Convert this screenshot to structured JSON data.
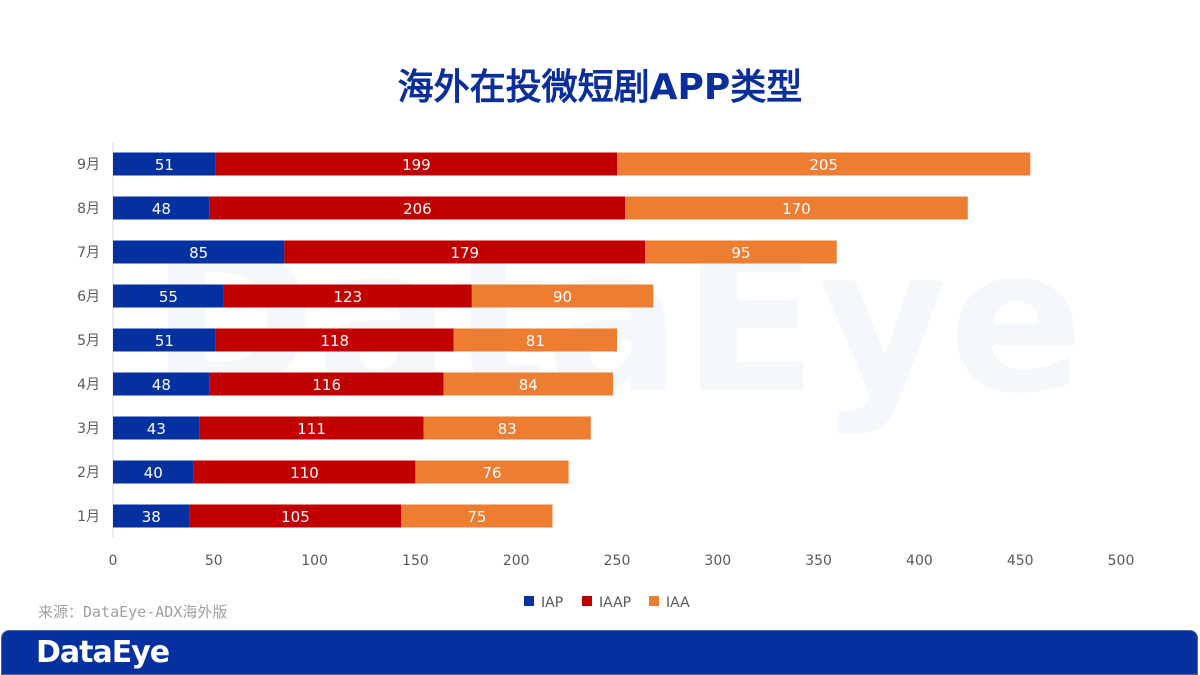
{
  "chart_data": {
    "type": "bar",
    "orientation": "horizontal",
    "stacked": true,
    "title": "海外在投微短剧APP类型",
    "categories": [
      "1月",
      "2月",
      "3月",
      "4月",
      "5月",
      "6月",
      "7月",
      "8月",
      "9月"
    ],
    "series": [
      {
        "name": "IAP",
        "color": "#0530a0",
        "values": [
          38,
          40,
          43,
          48,
          51,
          55,
          85,
          48,
          51
        ]
      },
      {
        "name": "IAAP",
        "color": "#c00000",
        "values": [
          105,
          110,
          111,
          116,
          118,
          123,
          179,
          206,
          199
        ]
      },
      {
        "name": "IAA",
        "color": "#ed7d31",
        "values": [
          75,
          76,
          83,
          84,
          81,
          90,
          95,
          170,
          205
        ]
      }
    ],
    "xlim": [
      0,
      500
    ],
    "xticks": [
      0,
      50,
      100,
      150,
      200,
      250,
      300,
      350,
      400,
      450,
      500
    ],
    "grid": false,
    "legend": "bottom",
    "data_labels": true
  },
  "source": "来源：DataEye-ADX海外版",
  "footer": {
    "logo": "DataEye"
  },
  "watermark": "DataEye"
}
